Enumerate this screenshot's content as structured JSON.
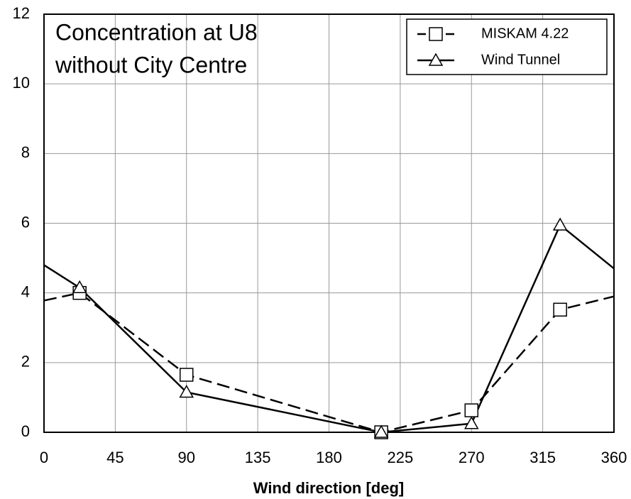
{
  "chart_data": {
    "type": "line",
    "title": [
      "Concentration at U8",
      "without City Centre"
    ],
    "xlabel": "Wind direction [deg]",
    "x": [
      0,
      22.5,
      90,
      213,
      270,
      326,
      360
    ],
    "series": [
      {
        "name": "MISKAM 4.22",
        "color": "#000000",
        "dash": true,
        "marker": "square",
        "values": [
          3.78,
          4.0,
          1.65,
          0,
          0.63,
          3.52,
          3.9
        ]
      },
      {
        "name": "Wind Tunnel",
        "color": "#000000",
        "dash": false,
        "marker": "triangle",
        "values": [
          4.8,
          4.15,
          1.15,
          0,
          0.25,
          5.95,
          4.7
        ]
      }
    ],
    "xlim": [
      0,
      360
    ],
    "xticks": [
      0,
      45,
      90,
      135,
      180,
      225,
      270,
      315,
      360
    ],
    "ylim": [
      0,
      12
    ],
    "yticks": [
      0,
      2,
      4,
      6,
      8,
      10,
      12
    ],
    "grid": true,
    "legend": "upper right"
  }
}
